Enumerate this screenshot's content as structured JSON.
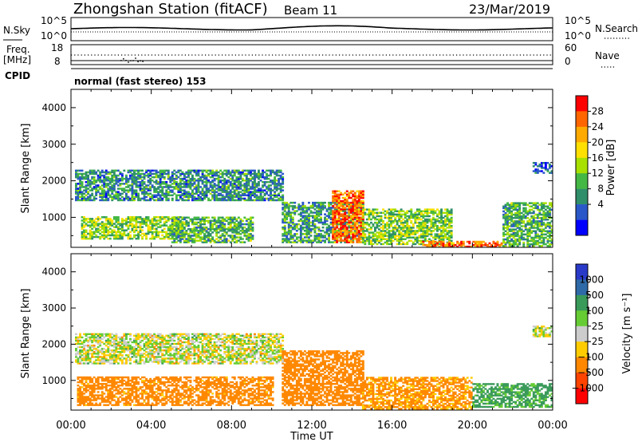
{
  "header": {
    "station": "Zhongshan Station (fitACF)",
    "beam": "Beam 11",
    "date": "23/Mar/2019"
  },
  "top_panels": {
    "nsky_label": "N.Sky",
    "nsearch_label": "N.Search",
    "left_ticks_1": [
      "10^5",
      "10^0"
    ],
    "right_ticks_1": [
      "10^5",
      "10^0"
    ],
    "freq_label": "Freq.",
    "freq_unit": "[MHz]",
    "freq_ticks": [
      "18",
      "8"
    ],
    "nave_ticks": [
      "60",
      "0"
    ],
    "nave_label": "Nave",
    "cpid_label": "CPID",
    "cpid_text": "normal (fast stereo) 153"
  },
  "colorbars": {
    "power": {
      "label": "Power [dB]",
      "ticks": [
        "28",
        "24",
        "20",
        "16",
        "12",
        "8",
        "4"
      ],
      "colors": [
        "#ff0000",
        "#ff6600",
        "#ffaa00",
        "#ffe000",
        "#a8e000",
        "#44b844",
        "#2f8f6a",
        "#2a58c8",
        "#0000ff"
      ]
    },
    "velocity": {
      "label": "Velocity [m s⁻¹]",
      "ticks": [
        "1000",
        "500",
        "100",
        "25",
        "−25",
        "−100",
        "−500",
        "−1000"
      ],
      "colors": [
        "#2a3ac8",
        "#2f6aa8",
        "#3a9a5a",
        "#66cc33",
        "#cccccc",
        "#ffcc00",
        "#ff8800",
        "#ff4400",
        "#ff0000"
      ]
    }
  },
  "chart_data": [
    {
      "type": "heatmap",
      "title": "",
      "quantity": "Power",
      "units": "dB",
      "ylabel": "Slant Range [km]",
      "xlabel": "",
      "ylim": [
        180,
        4500
      ],
      "xlim": [
        0,
        24
      ],
      "yticks": [
        "1000",
        "2000",
        "3000",
        "4000"
      ],
      "ytick_values": [
        1000,
        2000,
        3000,
        4000
      ],
      "regions": [
        {
          "t0": 0.2,
          "t1": 10.5,
          "r0": 1450,
          "r1": 2300,
          "dB": 9
        },
        {
          "t0": 0.5,
          "t1": 5.5,
          "r0": 400,
          "r1": 1000,
          "dB": 15
        },
        {
          "t0": 5.0,
          "t1": 9.0,
          "r0": 300,
          "r1": 1000,
          "dB": 12
        },
        {
          "t0": 10.5,
          "t1": 14.5,
          "r0": 300,
          "r1": 1400,
          "dB": 10
        },
        {
          "t0": 13.0,
          "t1": 14.5,
          "r0": 300,
          "r1": 1700,
          "dB": 26
        },
        {
          "t0": 14.5,
          "t1": 19.0,
          "r0": 250,
          "r1": 1200,
          "dB": 14
        },
        {
          "t0": 17.5,
          "t1": 21.5,
          "r0": 180,
          "r1": 350,
          "dB": 27
        },
        {
          "t0": 21.5,
          "t1": 24.0,
          "r0": 200,
          "r1": 1400,
          "dB": 12
        },
        {
          "t0": 23.0,
          "t1": 24.0,
          "r0": 2200,
          "r1": 2500,
          "dB": 6
        }
      ]
    },
    {
      "type": "heatmap",
      "title": "",
      "quantity": "Velocity",
      "units": "m s-1",
      "ylabel": "Slant Range [km]",
      "xlabel": "Time UT",
      "ylim": [
        180,
        4500
      ],
      "xlim": [
        0,
        24
      ],
      "xticks": [
        "00:00",
        "04:00",
        "08:00",
        "12:00",
        "16:00",
        "20:00",
        "00:00"
      ],
      "xtick_values": [
        0,
        4,
        8,
        12,
        16,
        20,
        24
      ],
      "yticks": [
        "1000",
        "2000",
        "3000",
        "4000"
      ],
      "ytick_values": [
        1000,
        2000,
        3000,
        4000
      ],
      "regions": [
        {
          "t0": 0.2,
          "t1": 10.5,
          "r0": 1450,
          "r1": 2300,
          "v": 0
        },
        {
          "t0": 0.3,
          "t1": 10.0,
          "r0": 300,
          "r1": 1100,
          "v": -200
        },
        {
          "t0": 10.5,
          "t1": 14.5,
          "r0": 300,
          "r1": 1800,
          "v": -300
        },
        {
          "t0": 14.5,
          "t1": 20.0,
          "r0": 200,
          "r1": 1100,
          "v": -150
        },
        {
          "t0": 20.0,
          "t1": 24.0,
          "r0": 250,
          "r1": 900,
          "v": 150
        },
        {
          "t0": 23.0,
          "t1": 24.0,
          "r0": 2200,
          "r1": 2500,
          "v": 0
        }
      ]
    }
  ]
}
